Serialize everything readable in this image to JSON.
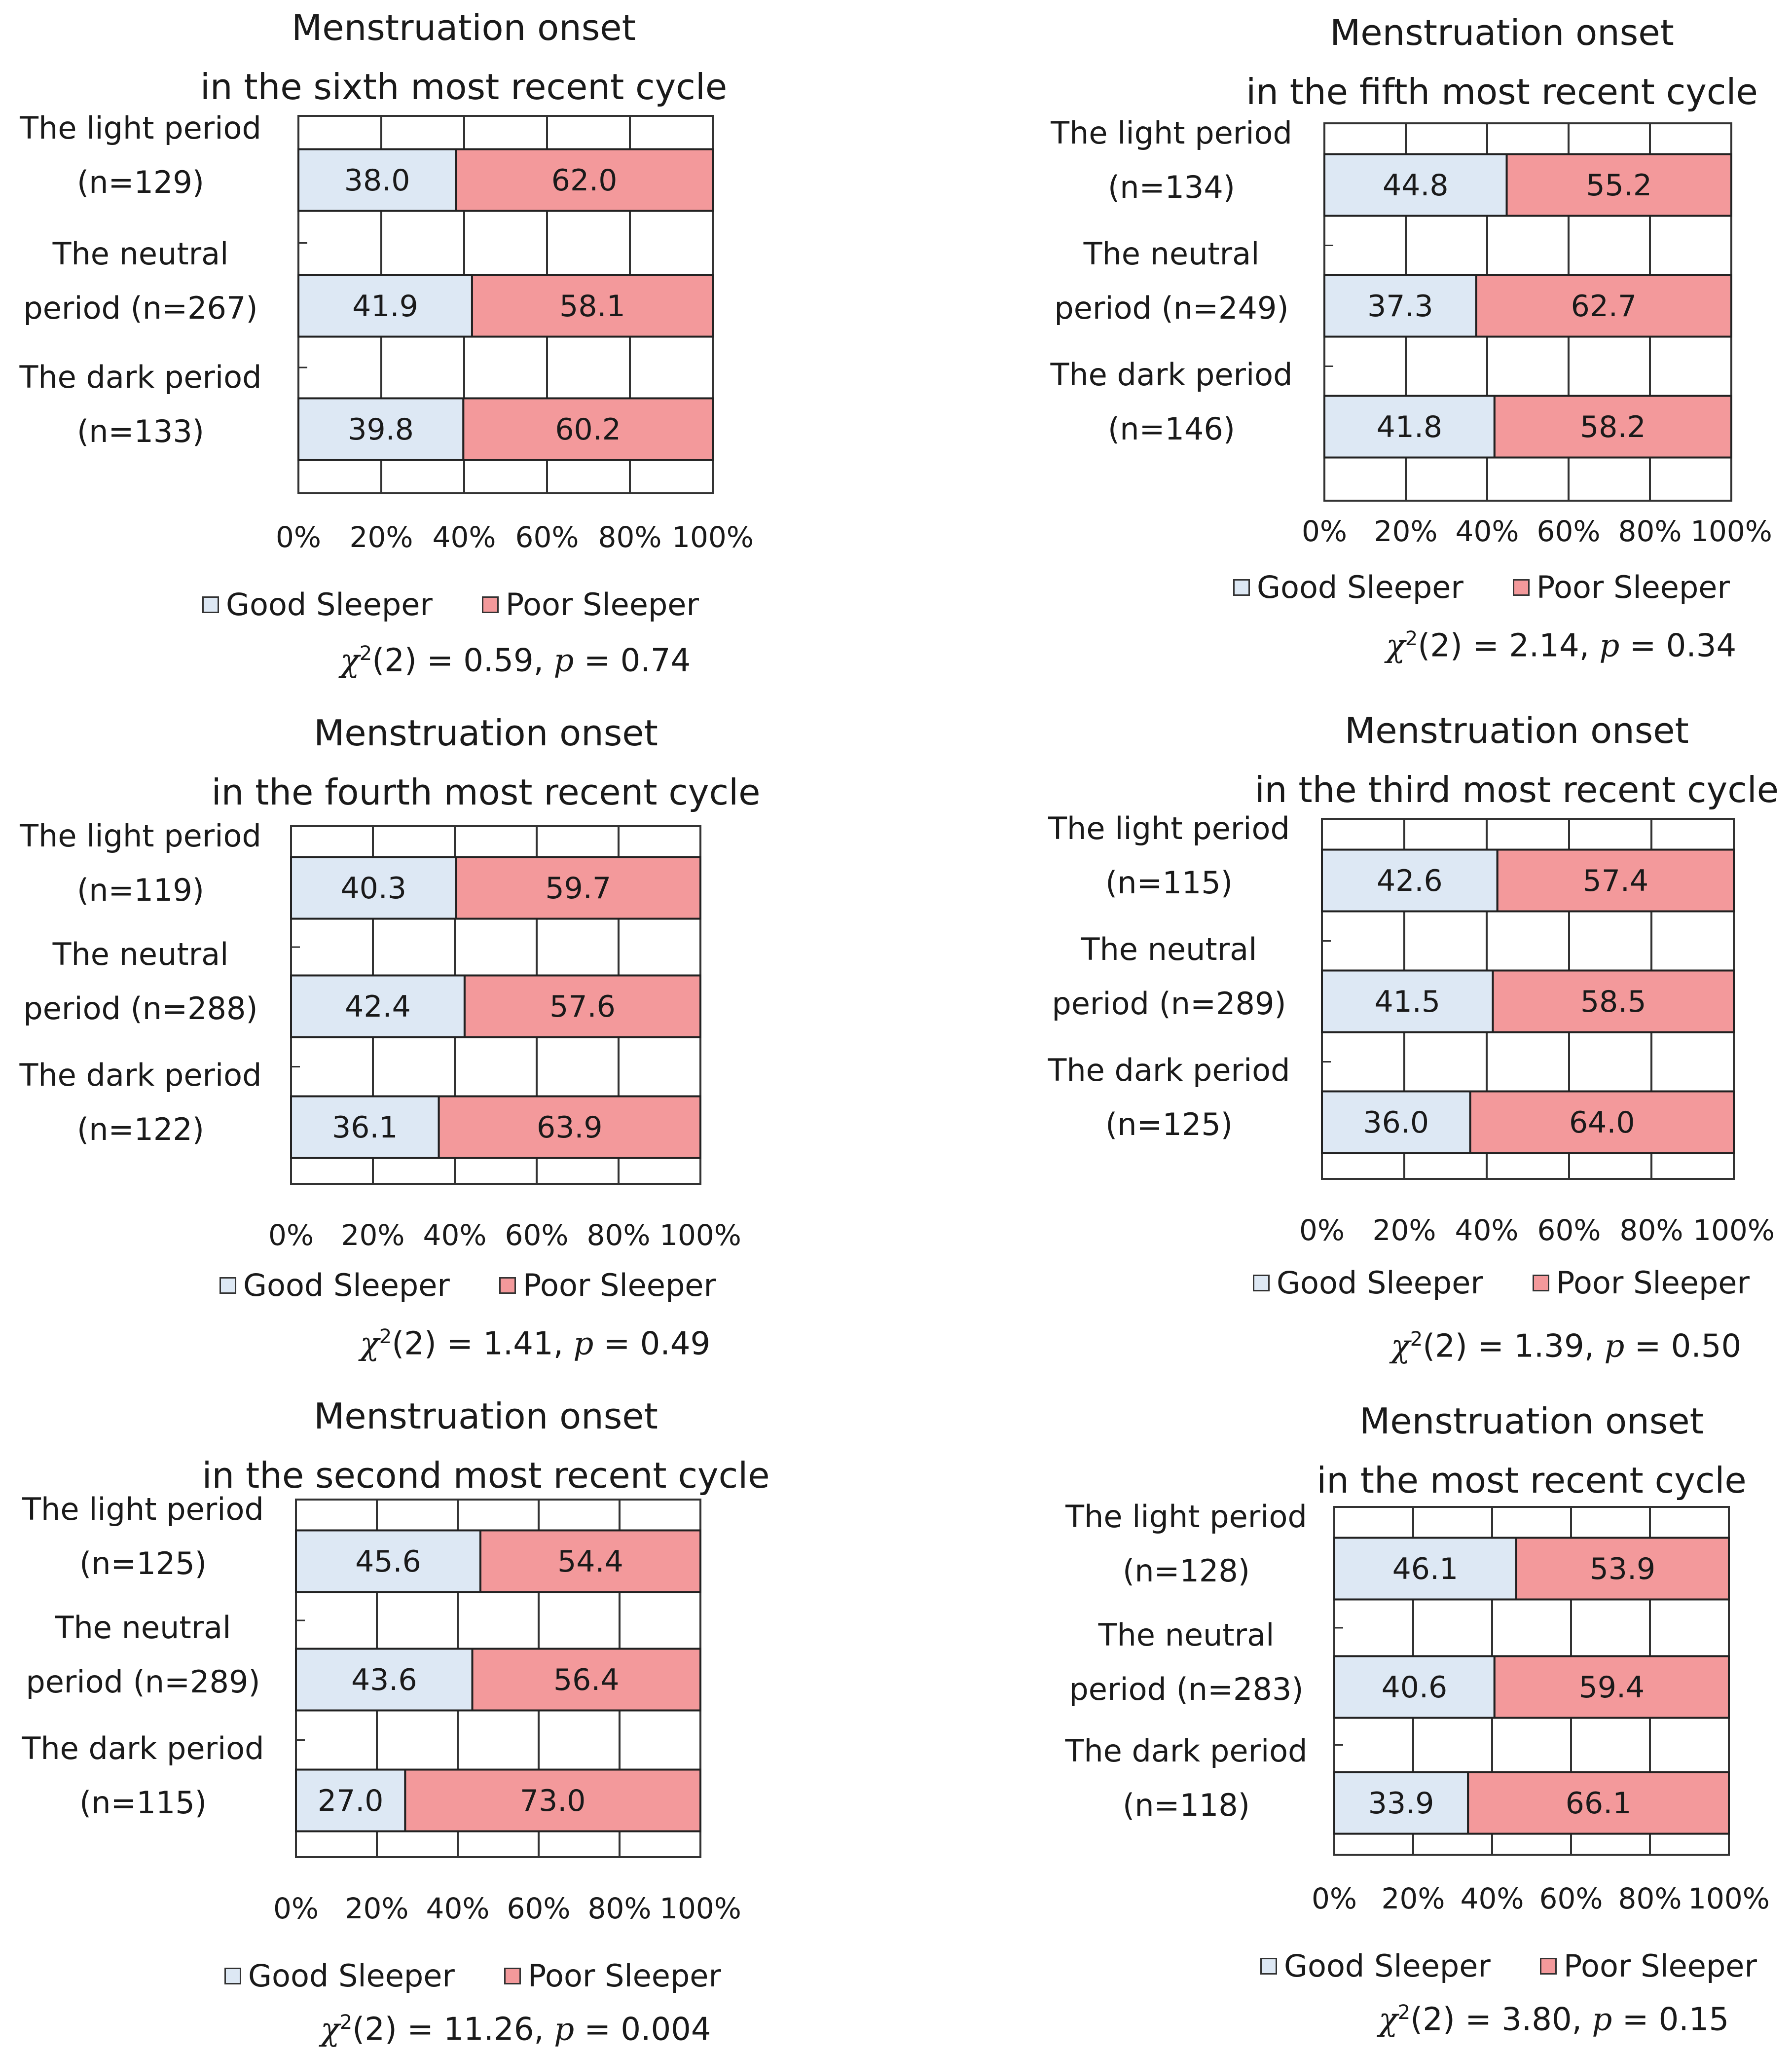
{
  "colors": {
    "good": "#dde8f4",
    "poor": "#f3999b",
    "grid": "#333333",
    "border": "#333333"
  },
  "chart_data": [
    {
      "type": "bar",
      "orientation": "horizontal-stacked-percent",
      "title_line1": "Menstruation onset",
      "title_line2": "in the sixth most recent cycle",
      "categories": [
        {
          "line1": "The light period",
          "line2": "(n=129)"
        },
        {
          "line1": "The neutral",
          "line2": "period (n=267)"
        },
        {
          "line1": "The dark period",
          "line2": "(n=133)"
        }
      ],
      "series": [
        {
          "name": "Good Sleeper",
          "values": [
            38.0,
            41.9,
            39.8
          ],
          "labels": [
            "38.0",
            "41.9",
            "39.8"
          ]
        },
        {
          "name": "Poor Sleeper",
          "values": [
            62.0,
            58.1,
            60.2
          ],
          "labels": [
            "62.0",
            "58.1",
            "60.2"
          ]
        }
      ],
      "xticks": [
        "0%",
        "20%",
        "40%",
        "60%",
        "80%",
        "100%"
      ],
      "xlim": [
        0,
        100
      ],
      "stat": {
        "df": "(2) = 0.59, ",
        "pval": " = 0.74"
      }
    },
    {
      "type": "bar",
      "orientation": "horizontal-stacked-percent",
      "title_line1": "Menstruation onset",
      "title_line2": "in the fifth most recent cycle",
      "categories": [
        {
          "line1": "The light period",
          "line2": "(n=134)"
        },
        {
          "line1": "The neutral",
          "line2": "period (n=249)"
        },
        {
          "line1": "The dark period",
          "line2": "(n=146)"
        }
      ],
      "series": [
        {
          "name": "Good Sleeper",
          "values": [
            44.8,
            37.3,
            41.8
          ],
          "labels": [
            "44.8",
            "37.3",
            "41.8"
          ]
        },
        {
          "name": "Poor Sleeper",
          "values": [
            55.2,
            62.7,
            58.2
          ],
          "labels": [
            "55.2",
            "62.7",
            "58.2"
          ]
        }
      ],
      "xticks": [
        "0%",
        "20%",
        "40%",
        "60%",
        "80%",
        "100%"
      ],
      "xlim": [
        0,
        100
      ],
      "stat": {
        "df": "(2) = 2.14, ",
        "pval": " = 0.34"
      }
    },
    {
      "type": "bar",
      "orientation": "horizontal-stacked-percent",
      "title_line1": "Menstruation onset",
      "title_line2": "in the fourth most recent cycle",
      "categories": [
        {
          "line1": "The light period",
          "line2": "(n=119)"
        },
        {
          "line1": "The neutral",
          "line2": "period (n=288)"
        },
        {
          "line1": "The dark period",
          "line2": "(n=122)"
        }
      ],
      "series": [
        {
          "name": "Good Sleeper",
          "values": [
            40.3,
            42.4,
            36.1
          ],
          "labels": [
            "40.3",
            "42.4",
            "36.1"
          ]
        },
        {
          "name": "Poor Sleeper",
          "values": [
            59.7,
            57.6,
            63.9
          ],
          "labels": [
            "59.7",
            "57.6",
            "63.9"
          ]
        }
      ],
      "xticks": [
        "0%",
        "20%",
        "40%",
        "60%",
        "80%",
        "100%"
      ],
      "xlim": [
        0,
        100
      ],
      "stat": {
        "df": "(2) = 1.41, ",
        "pval": " = 0.49"
      }
    },
    {
      "type": "bar",
      "orientation": "horizontal-stacked-percent",
      "title_line1": "Menstruation onset",
      "title_line2": "in the third most recent cycle",
      "categories": [
        {
          "line1": "The light period",
          "line2": "(n=115)"
        },
        {
          "line1": "The neutral",
          "line2": "period (n=289)"
        },
        {
          "line1": "The dark period",
          "line2": "(n=125)"
        }
      ],
      "series": [
        {
          "name": "Good Sleeper",
          "values": [
            42.6,
            41.5,
            36.0
          ],
          "labels": [
            "42.6",
            "41.5",
            "36.0"
          ]
        },
        {
          "name": "Poor Sleeper",
          "values": [
            57.4,
            58.5,
            64.0
          ],
          "labels": [
            "57.4",
            "58.5",
            "64.0"
          ]
        }
      ],
      "xticks": [
        "0%",
        "20%",
        "40%",
        "60%",
        "80%",
        "100%"
      ],
      "xlim": [
        0,
        100
      ],
      "stat": {
        "df": "(2) = 1.39, ",
        "pval": " = 0.50"
      }
    },
    {
      "type": "bar",
      "orientation": "horizontal-stacked-percent",
      "title_line1": "Menstruation onset",
      "title_line2": "in the second most recent cycle",
      "categories": [
        {
          "line1": "The light period",
          "line2": "(n=125)"
        },
        {
          "line1": "The neutral",
          "line2": "period (n=289)"
        },
        {
          "line1": "The dark period",
          "line2": "(n=115)"
        }
      ],
      "series": [
        {
          "name": "Good Sleeper",
          "values": [
            45.6,
            43.6,
            27.0
          ],
          "labels": [
            "45.6",
            "43.6",
            "27.0"
          ]
        },
        {
          "name": "Poor Sleeper",
          "values": [
            54.4,
            56.4,
            73.0
          ],
          "labels": [
            "54.4",
            "56.4",
            "73.0"
          ]
        }
      ],
      "xticks": [
        "0%",
        "20%",
        "40%",
        "60%",
        "80%",
        "100%"
      ],
      "xlim": [
        0,
        100
      ],
      "stat": {
        "df": "(2) = 11.26, ",
        "pval": " = 0.004"
      }
    },
    {
      "type": "bar",
      "orientation": "horizontal-stacked-percent",
      "title_line1": "Menstruation onset",
      "title_line2": "in the most recent cycle",
      "categories": [
        {
          "line1": "The light period",
          "line2": "(n=128)"
        },
        {
          "line1": "The neutral",
          "line2": "period (n=283)"
        },
        {
          "line1": "The dark period",
          "line2": "(n=118)"
        }
      ],
      "series": [
        {
          "name": "Good Sleeper",
          "values": [
            46.1,
            40.6,
            33.9
          ],
          "labels": [
            "46.1",
            "40.6",
            "33.9"
          ]
        },
        {
          "name": "Poor Sleeper",
          "values": [
            53.9,
            59.4,
            66.1
          ],
          "labels": [
            "53.9",
            "59.4",
            "66.1"
          ]
        }
      ],
      "xticks": [
        "0%",
        "20%",
        "40%",
        "60%",
        "80%",
        "100%"
      ],
      "xlim": [
        0,
        100
      ],
      "stat": {
        "df": "(2) = 3.80, ",
        "pval": " = 0.15"
      }
    }
  ],
  "legend": {
    "good": "Good Sleeper",
    "poor": "Poor Sleeper"
  },
  "stat_symbols": {
    "chi": "χ",
    "sup": "2",
    "p": "p"
  }
}
